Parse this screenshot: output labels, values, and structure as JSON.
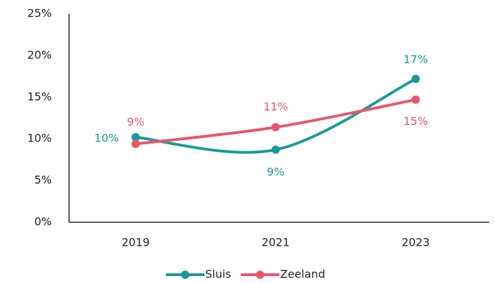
{
  "chart_data": {
    "type": "line",
    "categories": [
      "2019",
      "2021",
      "2023"
    ],
    "series": [
      {
        "name": "Sluis",
        "color": "#1a9a96",
        "values": [
          10.2,
          8.7,
          17.2
        ],
        "value_labels": [
          "10%",
          "9%",
          "17%"
        ]
      },
      {
        "name": "Zeeland",
        "color": "#e8566a",
        "values": [
          9.4,
          11.4,
          14.7
        ],
        "value_labels": [
          "9%",
          "11%",
          "15%"
        ]
      }
    ],
    "ylim": [
      0,
      25
    ],
    "yticks": [
      {
        "value": 0,
        "label": "0%"
      },
      {
        "value": 5,
        "label": "5%"
      },
      {
        "value": 10,
        "label": "10%"
      },
      {
        "value": 15,
        "label": "15%"
      },
      {
        "value": 20,
        "label": "20%"
      },
      {
        "value": 25,
        "label": "25%"
      }
    ],
    "grid": false,
    "smooth": true,
    "legend": "bottom"
  }
}
